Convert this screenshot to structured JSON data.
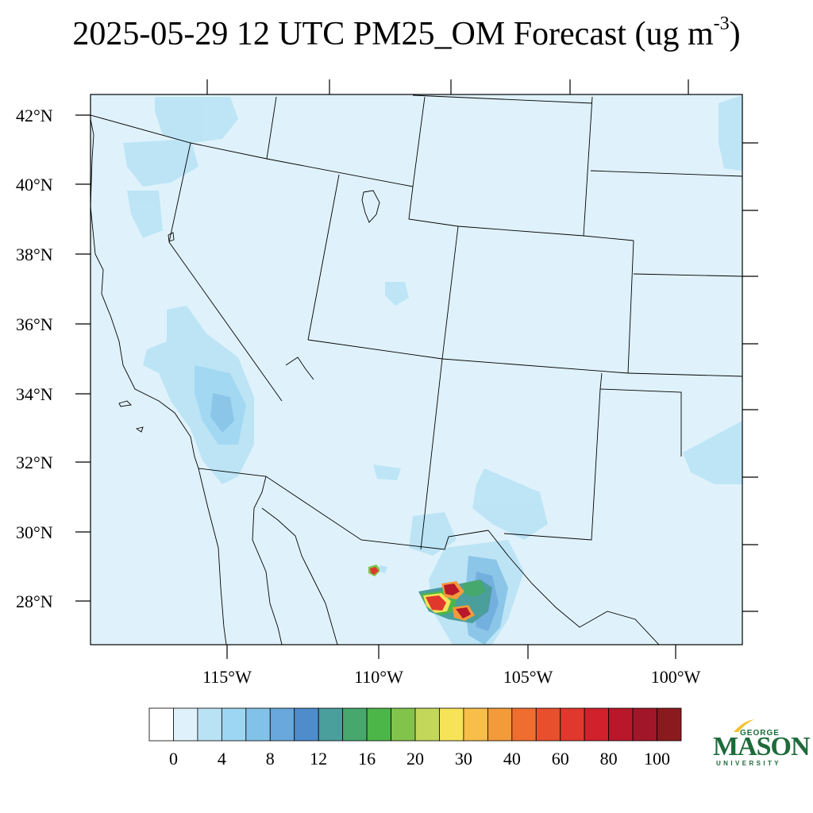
{
  "title": {
    "main": "2025-05-29 12 UTC PM25_OM Forecast (ug m",
    "superscript": "-3",
    "close": ")"
  },
  "map": {
    "lat_labels": [
      "42°N",
      "40°N",
      "38°N",
      "36°N",
      "34°N",
      "32°N",
      "30°N",
      "28°N"
    ],
    "lon_labels": [
      "115°W",
      "110°W",
      "105°W",
      "100°W"
    ],
    "background_color": "#dff2fb",
    "boundary_color": "#000000"
  },
  "colorbar": {
    "colors": [
      "#ffffff",
      "#dff2fb",
      "#b9e3f5",
      "#9dd6f2",
      "#82c2e8",
      "#68a8dc",
      "#4e8ccc",
      "#4a9e9c",
      "#47a86e",
      "#4cb648",
      "#82c34c",
      "#c3d85a",
      "#f6e358",
      "#f7bf49",
      "#f39a3b",
      "#ef6d2f",
      "#e8502d",
      "#e0382c",
      "#d0212c",
      "#b8182a",
      "#a2162a",
      "#8b1a1f"
    ],
    "labels": [
      "0",
      "4",
      "8",
      "12",
      "16",
      "20",
      "30",
      "40",
      "60",
      "80",
      "100"
    ]
  },
  "plumes": {
    "hotspot_colors": [
      "#4cb648",
      "#c3d85a",
      "#f6e358",
      "#f39a3b",
      "#e0382c",
      "#b8182a"
    ]
  },
  "logo": {
    "line1": "GEORGE",
    "line2": "MASON",
    "line3": "UNIVERSITY",
    "color": "#1d6b3a",
    "accent": "#f2c230"
  }
}
